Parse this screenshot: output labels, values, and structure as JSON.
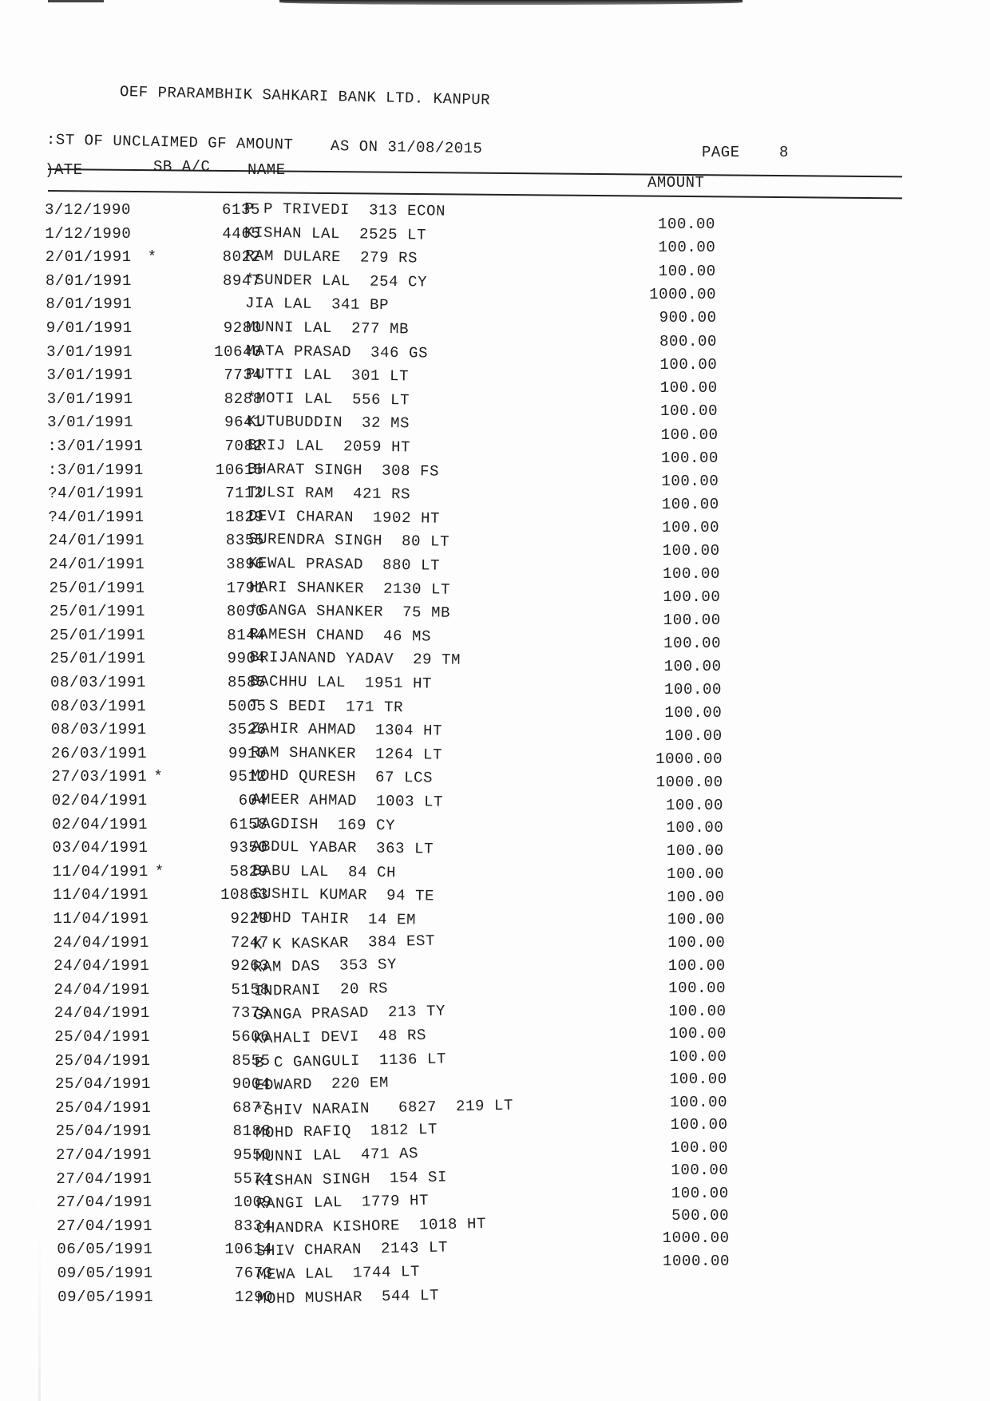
{
  "header": {
    "title": "OEF PRARAMBHIK SAHKARI BANK LTD. KANPUR",
    "subtitle": ":ST OF UNCLAIMED GF AMOUNT",
    "as_on": "AS ON 31/08/2015",
    "page_label": "PAGE",
    "page_number": "8"
  },
  "columns": {
    "date": ")ATE",
    "sb_ac": "SB A/C",
    "name": "NAME",
    "amount": "AMOUNT"
  },
  "rows": [
    {
      "date": "3/12/1990",
      "star": "",
      "ac": "6135",
      "name": "P P TRIVEDI  313 ECON",
      "amount": "100.00"
    },
    {
      "date": "1/12/1990",
      "star": "",
      "ac": "4465",
      "name": "KISHAN LAL  2525 LT",
      "amount": "100.00"
    },
    {
      "date": "2/01/1991",
      "star": "*",
      "ac": "8022",
      "name": "RAM DULARE  279 RS",
      "amount": "100.00"
    },
    {
      "date": "8/01/1991",
      "star": "",
      "ac": "8947",
      "name": "*SUNDER LAL  254 CY",
      "amount": "1000.00"
    },
    {
      "date": "8/01/1991",
      "star": "",
      "ac": "",
      "name": "JIA LAL  341 BP",
      "amount": "900.00"
    },
    {
      "date": "9/01/1991",
      "star": "",
      "ac": "9280",
      "name": "MUNNI LAL  277 MB",
      "amount": "800.00"
    },
    {
      "date": "3/01/1991",
      "star": "",
      "ac": "10640",
      "name": "MATA PRASAD  346 GS",
      "amount": "100.00"
    },
    {
      "date": "3/01/1991",
      "star": "",
      "ac": "7734",
      "name": "PUTTI LAL  301 LT",
      "amount": "100.00"
    },
    {
      "date": "3/01/1991",
      "star": "",
      "ac": "8288",
      "name": "*MOTI LAL  556 LT",
      "amount": "100.00"
    },
    {
      "date": "3/01/1991",
      "star": "",
      "ac": "9641",
      "name": "KUTUBUDDIN  32 MS",
      "amount": "100.00"
    },
    {
      "date": ":3/01/1991",
      "star": "",
      "ac": "7082",
      "name": "BRIJ LAL  2059 HT",
      "amount": "100.00"
    },
    {
      "date": ":3/01/1991",
      "star": "",
      "ac": "10615",
      "name": "BHARAT SINGH  308 FS",
      "amount": "100.00"
    },
    {
      "date": "?4/01/1991",
      "star": "",
      "ac": "7112",
      "name": "TULSI RAM  421 RS",
      "amount": "100.00"
    },
    {
      "date": "?4/01/1991",
      "star": "",
      "ac": "1829",
      "name": "DEVI CHARAN  1902 HT",
      "amount": "100.00"
    },
    {
      "date": "24/01/1991",
      "star": "",
      "ac": "8355",
      "name": "SURENDRA SINGH  80 LT",
      "amount": "100.00"
    },
    {
      "date": "24/01/1991",
      "star": "",
      "ac": "3896",
      "name": "KEWAL PRASAD  880 LT",
      "amount": "100.00"
    },
    {
      "date": "25/01/1991",
      "star": "",
      "ac": "1791",
      "name": "HARI SHANKER  2130 LT",
      "amount": "100.00"
    },
    {
      "date": "25/01/1991",
      "star": "",
      "ac": "8090",
      "name": "*GANGA SHANKER  75 MB",
      "amount": "100.00"
    },
    {
      "date": "25/01/1991",
      "star": "",
      "ac": "8144",
      "name": "RAMESH CHAND  46 MS",
      "amount": "100.00"
    },
    {
      "date": "25/01/1991",
      "star": "",
      "ac": "9904",
      "name": "BRIJANAND YADAV  29 TM",
      "amount": "100.00"
    },
    {
      "date": "08/03/1991",
      "star": "",
      "ac": "8585",
      "name": "BACHHU LAL  1951 HT",
      "amount": "100.00"
    },
    {
      "date": "08/03/1991",
      "star": "",
      "ac": "5005",
      "name": "T S BEDI  171 TR",
      "amount": "100.00"
    },
    {
      "date": "08/03/1991",
      "star": "",
      "ac": "3526",
      "name": "ZAHIR AHMAD  1304 HT",
      "amount": "100.00"
    },
    {
      "date": "26/03/1991",
      "star": "",
      "ac": "9910",
      "name": "RAM SHANKER  1264 LT",
      "amount": "1000.00"
    },
    {
      "date": "27/03/1991",
      "star": "*",
      "ac": "9512",
      "name": "MOHD QURESH  67 LCS",
      "amount": "1000.00"
    },
    {
      "date": "02/04/1991",
      "star": "",
      "ac": "604",
      "name": "AMEER AHMAD  1003 LT",
      "amount": "100.00"
    },
    {
      "date": "02/04/1991",
      "star": "",
      "ac": "6158",
      "name": "JAGDISH  169 CY",
      "amount": "100.00"
    },
    {
      "date": "03/04/1991",
      "star": "",
      "ac": "9350",
      "name": "ABDUL YABAR  363 LT",
      "amount": "100.00"
    },
    {
      "date": "11/04/1991",
      "star": "*",
      "ac": "5829",
      "name": "BABU LAL  84 CH",
      "amount": "100.00"
    },
    {
      "date": "11/04/1991",
      "star": "",
      "ac": "10863",
      "name": "SUSHIL KUMAR  94 TE",
      "amount": "100.00"
    },
    {
      "date": "11/04/1991",
      "star": "",
      "ac": "9229",
      "name": "MOHD TAHIR  14 EM",
      "amount": "100.00"
    },
    {
      "date": "24/04/1991",
      "star": "",
      "ac": "7247",
      "name": "K K KASKAR  384 EST",
      "amount": "100.00"
    },
    {
      "date": "24/04/1991",
      "star": "",
      "ac": "9263",
      "name": "RAM DAS  353 SY",
      "amount": "100.00"
    },
    {
      "date": "24/04/1991",
      "star": "",
      "ac": "5158",
      "name": "INDRANI  20 RS",
      "amount": "100.00"
    },
    {
      "date": "24/04/1991",
      "star": "",
      "ac": "7379",
      "name": "GANGA PRASAD  213 TY",
      "amount": "100.00"
    },
    {
      "date": "25/04/1991",
      "star": "",
      "ac": "5606",
      "name": "KAHALI DEVI  48 RS",
      "amount": "100.00"
    },
    {
      "date": "25/04/1991",
      "star": "",
      "ac": "8555",
      "name": "B C GANGULI  1136 LT",
      "amount": "100.00"
    },
    {
      "date": "25/04/1991",
      "star": "",
      "ac": "9004",
      "name": "EDWARD  220 EM",
      "amount": "100.00"
    },
    {
      "date": "25/04/1991",
      "star": "",
      "ac": "6877",
      "name": "*SHIV NARAIN   6827  219 LT",
      "amount": "100.00"
    },
    {
      "date": "25/04/1991",
      "star": "",
      "ac": "8188",
      "name": "MOHD RAFIQ  1812 LT",
      "amount": "100.00"
    },
    {
      "date": "27/04/1991",
      "star": "",
      "ac": "9550",
      "name": "MUNNI LAL  471 AS",
      "amount": "100.00"
    },
    {
      "date": "27/04/1991",
      "star": "",
      "ac": "5574",
      "name": "KISHAN SINGH  154 SI",
      "amount": "100.00"
    },
    {
      "date": "27/04/1991",
      "star": "",
      "ac": "1009",
      "name": "RANGI LAL  1779 HT",
      "amount": "100.00"
    },
    {
      "date": "27/04/1991",
      "star": "",
      "ac": "8334",
      "name": "CHANDRA KISHORE  1018 HT",
      "amount": "500.00"
    },
    {
      "date": "06/05/1991",
      "star": "",
      "ac": "10614",
      "name": "SHIV CHARAN  2143 LT",
      "amount": "1000.00"
    },
    {
      "date": "09/05/1991",
      "star": "",
      "ac": "7673",
      "name": "MEWA LAL  1744 LT",
      "amount": "1000.00"
    },
    {
      "date": "09/05/1991",
      "star": "",
      "ac": "1290",
      "name": "MOHD MUSHAR  544 LT",
      "amount": ""
    }
  ]
}
